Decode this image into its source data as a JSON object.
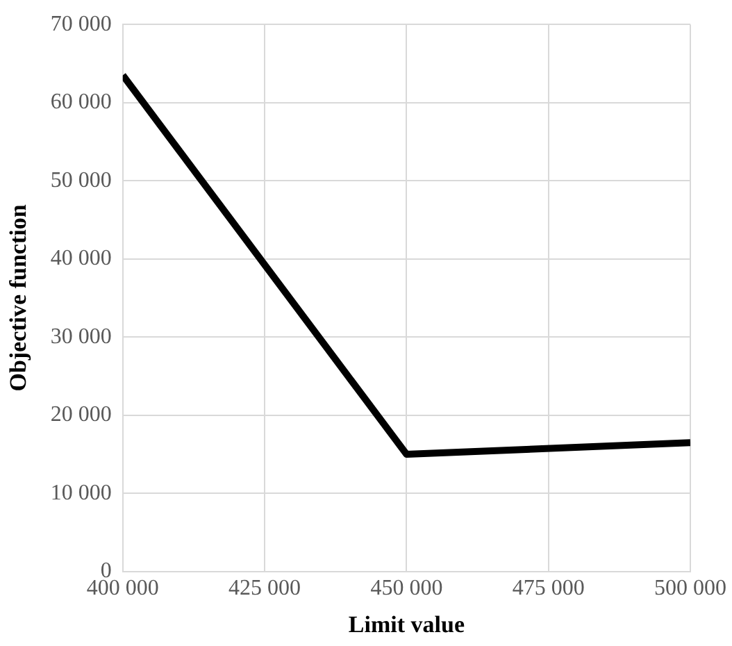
{
  "chart_data": {
    "type": "line",
    "xlabel": "Limit value",
    "ylabel": "Objective function",
    "x": [
      400000,
      450000,
      500000
    ],
    "series": [
      {
        "color": "#000000",
        "values": [
          63500,
          15000,
          16500
        ]
      }
    ],
    "xlim": [
      400000,
      500000
    ],
    "xticks": [
      {
        "value": 400000,
        "label": "400 000"
      },
      {
        "value": 425000,
        "label": "425 000"
      },
      {
        "value": 450000,
        "label": "450 000"
      },
      {
        "value": 475000,
        "label": "475 000"
      },
      {
        "value": 500000,
        "label": "500 000"
      }
    ],
    "ylim": [
      0,
      70000
    ],
    "yticks": [
      0,
      {
        "value": 10000,
        "label": "10 000"
      },
      {
        "value": 20000,
        "label": "20 000"
      },
      {
        "value": 30000,
        "label": "30 000"
      },
      {
        "value": 40000,
        "label": "40 000"
      },
      {
        "value": 50000,
        "label": "50 000"
      },
      {
        "value": 60000,
        "label": "60 000"
      },
      {
        "value": 70000,
        "label": "70 000"
      }
    ],
    "grid": true,
    "legend": false,
    "marker": "none",
    "line_style": "solid"
  }
}
